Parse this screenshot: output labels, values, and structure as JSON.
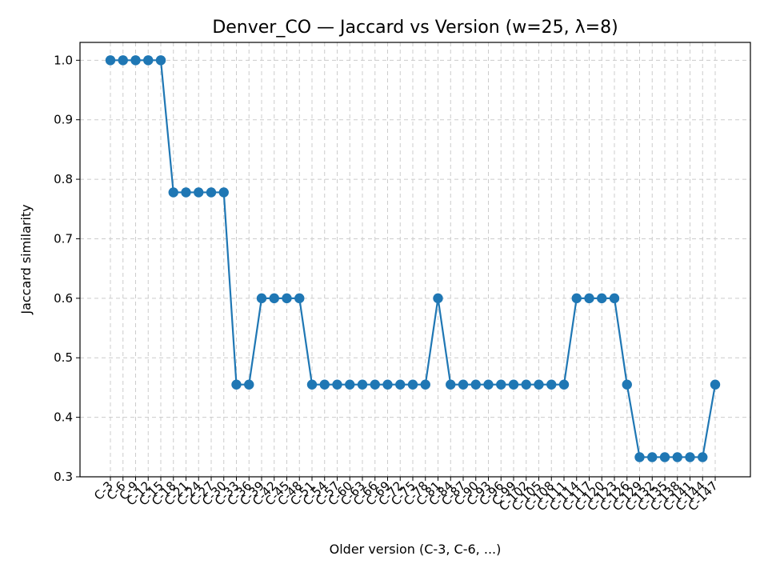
{
  "chart_data": {
    "type": "line",
    "title": "Denver_CO — Jaccard vs Version (w=25, λ=8)",
    "xlabel": "Older version (C-3, C-6, ...)",
    "ylabel": "Jaccard similarity",
    "ylim": [
      0.3,
      1.03
    ],
    "yticks": [
      "0.3",
      "0.4",
      "0.5",
      "0.6",
      "0.7",
      "0.8",
      "0.9",
      "1.0"
    ],
    "grid": true,
    "colors": {
      "series": "#1f77b4",
      "grid": "#cccccc"
    },
    "categories": [
      "C-3",
      "C-6",
      "C-9",
      "C-12",
      "C-15",
      "C-18",
      "C-21",
      "C-24",
      "C-27",
      "C-30",
      "C-33",
      "C-36",
      "C-39",
      "C-42",
      "C-45",
      "C-48",
      "C-51",
      "C-54",
      "C-57",
      "C-60",
      "C-63",
      "C-66",
      "C-69",
      "C-72",
      "C-75",
      "C-78",
      "C-81",
      "C-84",
      "C-87",
      "C-90",
      "C-93",
      "C-96",
      "C-99",
      "C-102",
      "C-105",
      "C-108",
      "C-111",
      "C-114",
      "C-117",
      "C-120",
      "C-123",
      "C-126",
      "C-129",
      "C-132",
      "C-135",
      "C-138",
      "C-141",
      "C-144",
      "C-147"
    ],
    "series": [
      {
        "values": [
          1.0,
          1.0,
          1.0,
          1.0,
          1.0,
          0.778,
          0.778,
          0.778,
          0.778,
          0.778,
          0.455,
          0.455,
          0.6,
          0.6,
          0.6,
          0.6,
          0.455,
          0.455,
          0.455,
          0.455,
          0.455,
          0.455,
          0.455,
          0.455,
          0.455,
          0.455,
          0.6,
          0.455,
          0.455,
          0.455,
          0.455,
          0.455,
          0.455,
          0.455,
          0.455,
          0.455,
          0.455,
          0.6,
          0.6,
          0.6,
          0.6,
          0.455,
          0.333,
          0.333,
          0.333,
          0.333,
          0.333,
          0.333,
          0.455
        ]
      }
    ]
  }
}
